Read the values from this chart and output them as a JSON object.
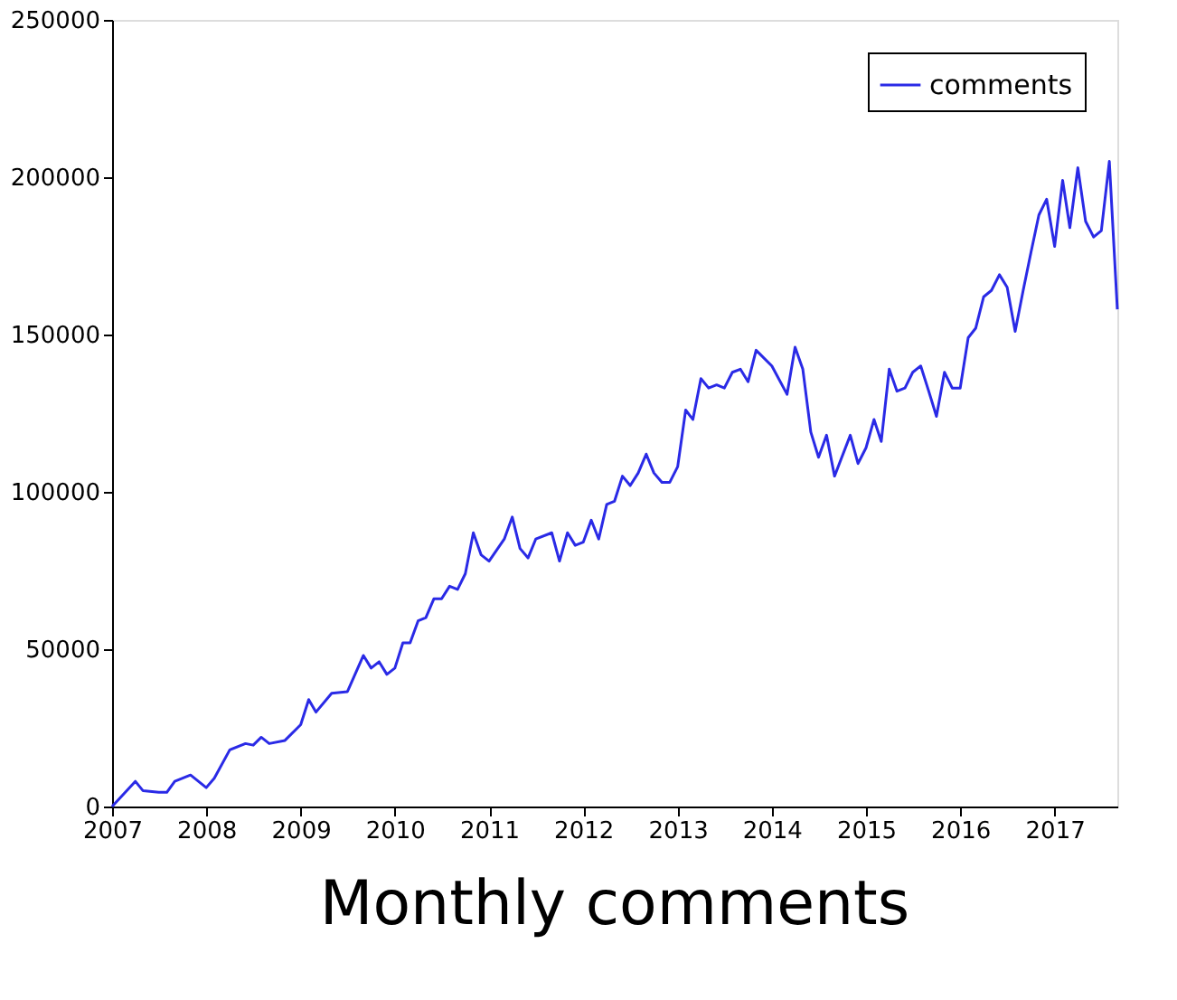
{
  "chart_data": {
    "type": "line",
    "title": "Monthly comments",
    "x": [
      "2007-01",
      "2007-04",
      "2007-05",
      "2007-07",
      "2007-08",
      "2007-09",
      "2007-11",
      "2008-01",
      "2008-02",
      "2008-04",
      "2008-06",
      "2008-07",
      "2008-08",
      "2008-09",
      "2008-11",
      "2009-01",
      "2009-02",
      "2009-03",
      "2009-05",
      "2009-07",
      "2009-09",
      "2009-10",
      "2009-11",
      "2009-12",
      "2010-01",
      "2010-02",
      "2010-03",
      "2010-04",
      "2010-05",
      "2010-06",
      "2010-07",
      "2010-08",
      "2010-09",
      "2010-10",
      "2010-11",
      "2010-12",
      "2011-01",
      "2011-03",
      "2011-04",
      "2011-05",
      "2011-06",
      "2011-07",
      "2011-09",
      "2011-10",
      "2011-11",
      "2011-12",
      "2012-01",
      "2012-02",
      "2012-03",
      "2012-04",
      "2012-05",
      "2012-06",
      "2012-07",
      "2012-08",
      "2012-09",
      "2012-10",
      "2012-11",
      "2012-12",
      "2013-01",
      "2013-02",
      "2013-03",
      "2013-04",
      "2013-05",
      "2013-06",
      "2013-07",
      "2013-08",
      "2013-09",
      "2013-10",
      "2013-11",
      "2014-01",
      "2014-03",
      "2014-04",
      "2014-05",
      "2014-06",
      "2014-07",
      "2014-08",
      "2014-09",
      "2014-11",
      "2014-12",
      "2015-01",
      "2015-02",
      "2015-03",
      "2015-04",
      "2015-05",
      "2015-06",
      "2015-07",
      "2015-08",
      "2015-09",
      "2015-10",
      "2015-11",
      "2015-12",
      "2016-01",
      "2016-02",
      "2016-03",
      "2016-04",
      "2016-05",
      "2016-06",
      "2016-07",
      "2016-08",
      "2016-09",
      "2016-10",
      "2016-11",
      "2016-12",
      "2017-01",
      "2017-02",
      "2017-03",
      "2017-04",
      "2017-05",
      "2017-06",
      "2017-07",
      "2017-08",
      "2017-09"
    ],
    "series": [
      {
        "name": "comments",
        "color": "#2a2ae6",
        "values": [
          0,
          8000,
          5000,
          4500,
          4500,
          8000,
          10000,
          6000,
          9000,
          18000,
          20000,
          19500,
          22000,
          20000,
          21000,
          26000,
          34000,
          30000,
          36000,
          36500,
          48000,
          44000,
          46000,
          42000,
          44000,
          52000,
          52000,
          59000,
          60000,
          66000,
          66000,
          70000,
          69000,
          74000,
          87000,
          80000,
          78000,
          85000,
          92000,
          82000,
          79000,
          85000,
          87000,
          78000,
          87000,
          83000,
          84000,
          91000,
          85000,
          96000,
          97000,
          105000,
          102000,
          106000,
          112000,
          106000,
          103000,
          103000,
          108000,
          126000,
          123000,
          136000,
          133000,
          134000,
          133000,
          138000,
          139000,
          135000,
          145000,
          140000,
          131000,
          146000,
          139000,
          119000,
          111000,
          118000,
          105000,
          118000,
          109000,
          114000,
          123000,
          116000,
          139000,
          132000,
          133000,
          138000,
          140000,
          132000,
          124000,
          138000,
          133000,
          133000,
          149000,
          152000,
          162000,
          164000,
          169000,
          165000,
          151000,
          164000,
          176000,
          188000,
          193000,
          178000,
          199000,
          184000,
          203000,
          186000,
          181000,
          183000,
          205000,
          158000
        ]
      }
    ],
    "xlim": [
      "2007-01",
      "2017-09"
    ],
    "xticks": [
      "2007",
      "2008",
      "2009",
      "2010",
      "2011",
      "2012",
      "2013",
      "2014",
      "2015",
      "2016",
      "2017"
    ],
    "ylim": [
      0,
      250000
    ],
    "yticks": [
      0,
      50000,
      100000,
      150000,
      200000,
      250000
    ],
    "grid": false,
    "legend": "top right",
    "marker": "none",
    "line_style": "solid"
  }
}
